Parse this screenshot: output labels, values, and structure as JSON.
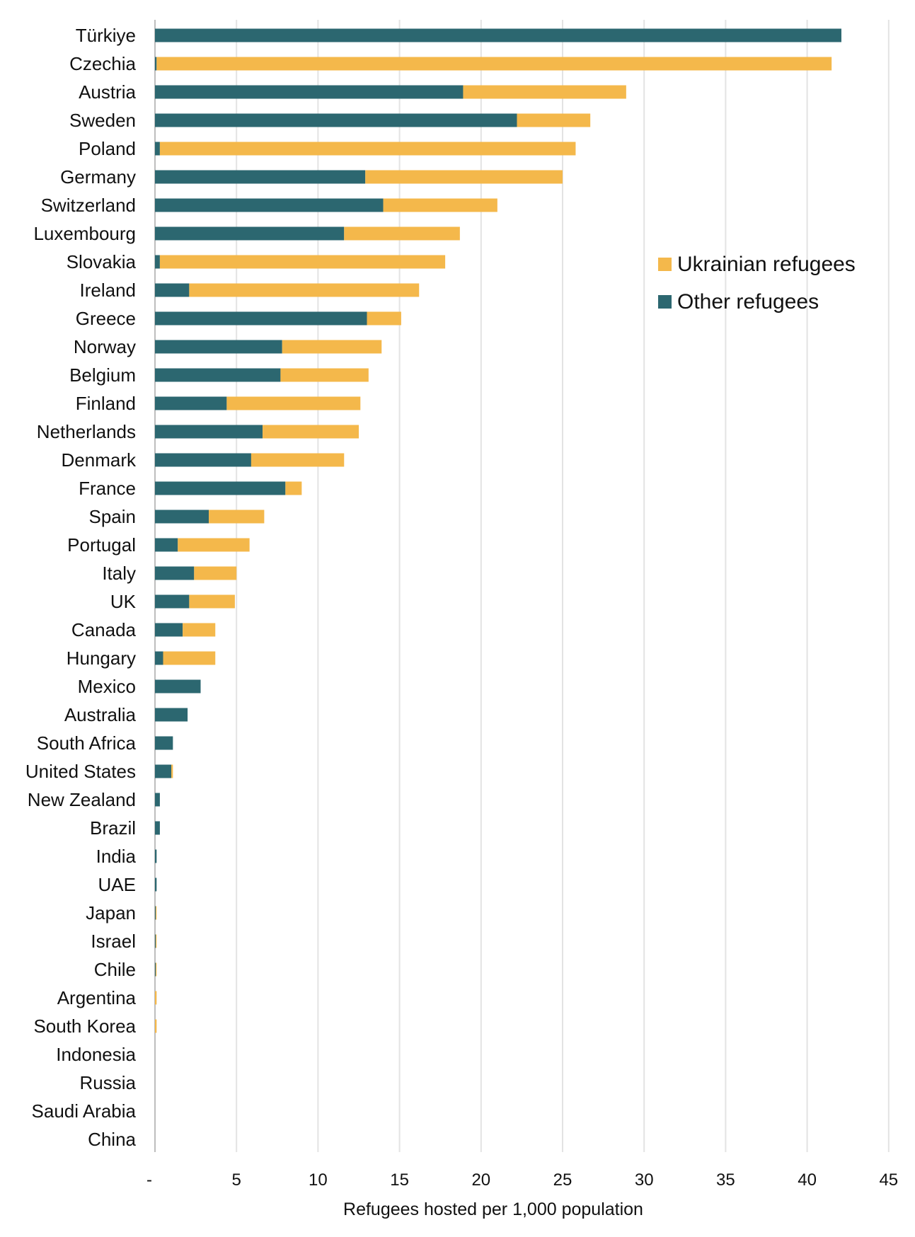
{
  "chart_data": {
    "type": "bar",
    "orientation": "horizontal",
    "stacked": true,
    "title": "",
    "xlabel": "Refugees hosted per 1,000 population",
    "ylabel": "",
    "xlim": [
      0,
      45
    ],
    "ticks": [
      {
        "value": 0,
        "label": "-"
      },
      {
        "value": 5,
        "label": "5"
      },
      {
        "value": 10,
        "label": "10"
      },
      {
        "value": 15,
        "label": "15"
      },
      {
        "value": 20,
        "label": "20"
      },
      {
        "value": 25,
        "label": "25"
      },
      {
        "value": 30,
        "label": "30"
      },
      {
        "value": 35,
        "label": "35"
      },
      {
        "value": 40,
        "label": "40"
      },
      {
        "value": 45,
        "label": "45"
      }
    ],
    "grid": true,
    "legend_position": "upper-right",
    "categories": [
      "Türkiye",
      "Czechia",
      "Austria",
      "Sweden",
      "Poland",
      "Germany",
      "Switzerland",
      "Luxembourg",
      "Slovakia",
      "Ireland",
      "Greece",
      "Norway",
      "Belgium",
      "Finland",
      "Netherlands",
      "Denmark",
      "France",
      "Spain",
      "Portugal",
      "Italy",
      "UK",
      "Canada",
      "Hungary",
      "Mexico",
      "Australia",
      "South Africa",
      "United States",
      "New Zealand",
      "Brazil",
      "India",
      "UAE",
      "Japan",
      "Israel",
      "Chile",
      "Argentina",
      "South Korea",
      "Indonesia",
      "Russia",
      "Saudi Arabia",
      "China"
    ],
    "series": [
      {
        "name": "Other refugees",
        "color": "#2c6770",
        "values": [
          42.1,
          0.1,
          18.9,
          22.2,
          0.3,
          12.9,
          14.0,
          11.6,
          0.3,
          2.1,
          13.0,
          7.8,
          7.7,
          4.4,
          6.6,
          5.9,
          8.0,
          3.3,
          1.4,
          2.4,
          2.1,
          1.7,
          0.5,
          2.8,
          2.0,
          1.1,
          1.0,
          0.3,
          0.3,
          0.1,
          0.1,
          0.05,
          0.05,
          0.05,
          0.0,
          0.0,
          0.0,
          0.0,
          0.0,
          0.0
        ]
      },
      {
        "name": "Ukrainian refugees",
        "color": "#f4b84b",
        "values": [
          0.0,
          41.4,
          10.0,
          4.5,
          25.5,
          12.1,
          7.0,
          7.1,
          17.5,
          14.1,
          2.1,
          6.1,
          5.4,
          8.2,
          5.9,
          5.7,
          1.0,
          3.4,
          4.4,
          2.6,
          2.8,
          2.0,
          3.2,
          0.0,
          0.0,
          0.0,
          0.1,
          0.0,
          0.0,
          0.0,
          0.0,
          0.05,
          0.05,
          0.05,
          0.1,
          0.1,
          0.0,
          0.0,
          0.0,
          0.0
        ]
      }
    ],
    "legend_order": [
      "Ukrainian refugees",
      "Other refugees"
    ]
  }
}
